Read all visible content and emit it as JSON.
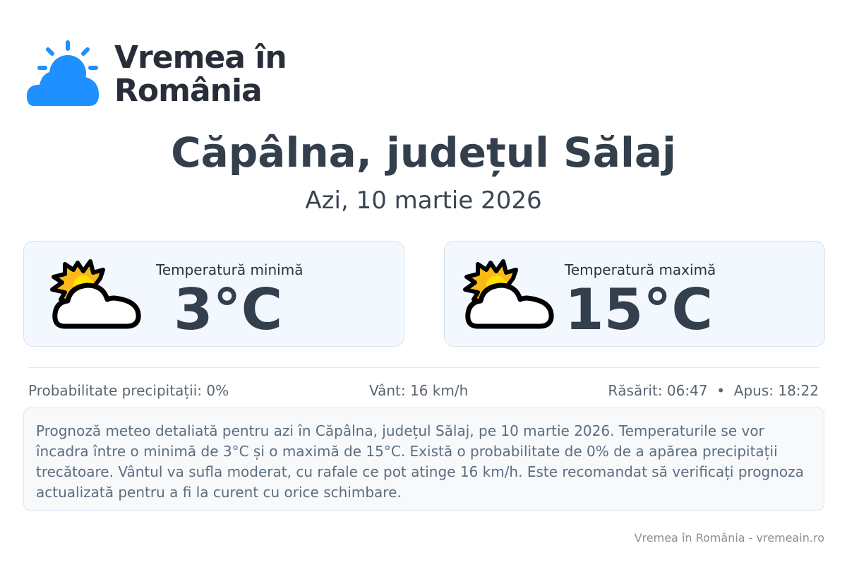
{
  "brand": {
    "line1": "Vremea în",
    "line2": "România",
    "logo_color": "#1e90ff",
    "icon": "sun-cloud-logo-icon"
  },
  "title": "Căpâlna, județul Sălaj",
  "date": "Azi, 10 martie 2026",
  "cards": [
    {
      "label": "Temperatură minimă",
      "value": "3°C",
      "icon": "partly-cloudy-icon"
    },
    {
      "label": "Temperatură maximă",
      "value": "15°C",
      "icon": "partly-cloudy-icon"
    }
  ],
  "info": {
    "precip": "Probabilitate precipitații: 0%",
    "wind": "Vânt: 16 km/h",
    "sun": "Răsărit: 06:47  •  Apus: 18:22"
  },
  "description": "Prognoză meteo detaliată pentru azi în Căpâlna, județul Sălaj, pe 10 martie 2026. Temperaturile se vor încadra între o minimă de 3°C și o maximă de 15°C. Există o probabilitate de 0% de a apărea precipitații trecătoare. Vântul va sufla moderat, cu rafale ce pot atinge 16 km/h. Este recomandat să verificați prognoza actualizată pentru a fi la curent cu orice schimbare.",
  "footer": "Vremea în România - vremeain.ro"
}
